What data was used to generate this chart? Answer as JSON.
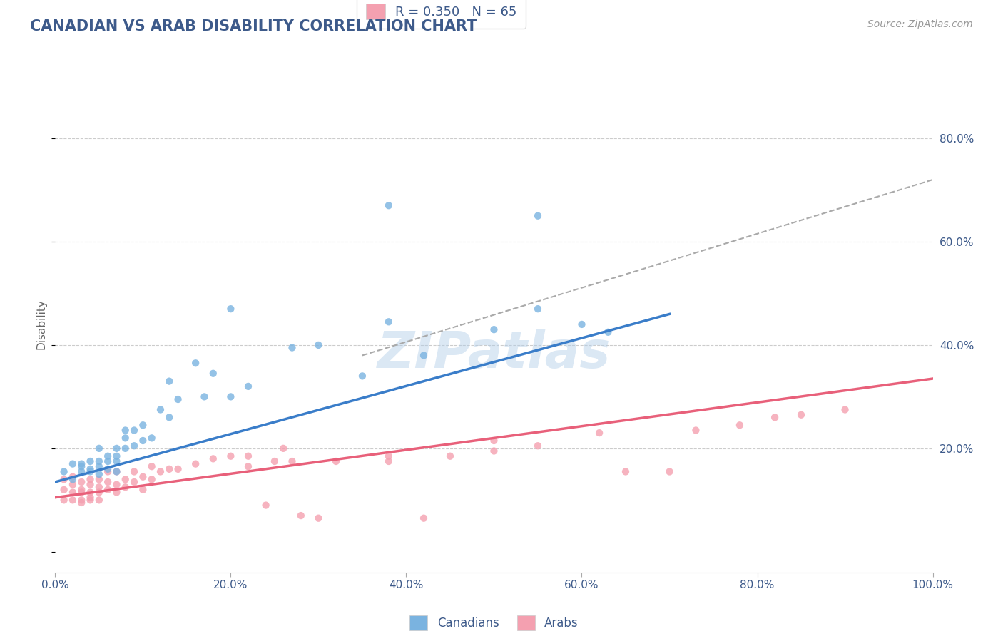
{
  "title": "CANADIAN VS ARAB DISABILITY CORRELATION CHART",
  "title_color": "#3d5a8a",
  "source_text": "Source: ZipAtlas.com",
  "ylabel": "Disability",
  "xlim": [
    0.0,
    1.0
  ],
  "ylim": [
    -0.04,
    0.92
  ],
  "x_ticks": [
    0.0,
    0.2,
    0.4,
    0.6,
    0.8,
    1.0
  ],
  "x_tick_labels": [
    "0.0%",
    "20.0%",
    "40.0%",
    "60.0%",
    "80.0%",
    "100.0%"
  ],
  "y_tick_vals": [
    0.2,
    0.4,
    0.6,
    0.8
  ],
  "y_tick_labels_right": [
    "20.0%",
    "40.0%",
    "60.0%",
    "80.0%"
  ],
  "canadian_color": "#7ab3e0",
  "arab_color": "#f4a0b0",
  "canadian_line_color": "#3a7dc9",
  "arab_line_color": "#e8607a",
  "dashed_line_color": "#aaaaaa",
  "legend_arab_label": "R = 0.350   N = 65",
  "legend_text_color": "#3d5a8a",
  "watermark": "ZIPatlas",
  "canadian_line": [
    0.0,
    0.135,
    0.7,
    0.46
  ],
  "arab_line": [
    0.0,
    0.105,
    1.0,
    0.335
  ],
  "dashed_line": [
    0.35,
    0.38,
    1.0,
    0.72
  ],
  "canadian_x": [
    0.01,
    0.02,
    0.02,
    0.03,
    0.03,
    0.03,
    0.04,
    0.04,
    0.04,
    0.05,
    0.05,
    0.05,
    0.05,
    0.06,
    0.06,
    0.06,
    0.07,
    0.07,
    0.07,
    0.07,
    0.08,
    0.08,
    0.08,
    0.09,
    0.09,
    0.1,
    0.1,
    0.11,
    0.12,
    0.13,
    0.13,
    0.14,
    0.16,
    0.17,
    0.18,
    0.2,
    0.22,
    0.27,
    0.3,
    0.35,
    0.38,
    0.42,
    0.5,
    0.55,
    0.6,
    0.63,
    0.38,
    0.55,
    0.2
  ],
  "canadian_y": [
    0.155,
    0.14,
    0.17,
    0.155,
    0.165,
    0.17,
    0.155,
    0.16,
    0.175,
    0.15,
    0.165,
    0.175,
    0.2,
    0.16,
    0.175,
    0.185,
    0.155,
    0.175,
    0.185,
    0.2,
    0.22,
    0.235,
    0.2,
    0.205,
    0.235,
    0.215,
    0.245,
    0.22,
    0.275,
    0.26,
    0.33,
    0.295,
    0.365,
    0.3,
    0.345,
    0.3,
    0.32,
    0.395,
    0.4,
    0.34,
    0.445,
    0.38,
    0.43,
    0.47,
    0.44,
    0.425,
    0.67,
    0.65,
    0.47
  ],
  "arab_x": [
    0.01,
    0.01,
    0.01,
    0.02,
    0.02,
    0.02,
    0.02,
    0.03,
    0.03,
    0.03,
    0.03,
    0.03,
    0.04,
    0.04,
    0.04,
    0.04,
    0.04,
    0.05,
    0.05,
    0.05,
    0.05,
    0.06,
    0.06,
    0.06,
    0.07,
    0.07,
    0.07,
    0.08,
    0.08,
    0.09,
    0.09,
    0.1,
    0.1,
    0.11,
    0.11,
    0.12,
    0.13,
    0.14,
    0.16,
    0.18,
    0.2,
    0.22,
    0.22,
    0.25,
    0.26,
    0.27,
    0.3,
    0.32,
    0.38,
    0.38,
    0.42,
    0.45,
    0.5,
    0.5,
    0.55,
    0.62,
    0.65,
    0.7,
    0.73,
    0.78,
    0.82,
    0.85,
    0.9,
    0.24,
    0.28
  ],
  "arab_y": [
    0.12,
    0.1,
    0.14,
    0.115,
    0.1,
    0.13,
    0.145,
    0.1,
    0.12,
    0.135,
    0.095,
    0.115,
    0.1,
    0.115,
    0.13,
    0.105,
    0.14,
    0.115,
    0.1,
    0.125,
    0.14,
    0.12,
    0.135,
    0.155,
    0.115,
    0.13,
    0.155,
    0.125,
    0.14,
    0.135,
    0.155,
    0.12,
    0.145,
    0.14,
    0.165,
    0.155,
    0.16,
    0.16,
    0.17,
    0.18,
    0.185,
    0.165,
    0.185,
    0.175,
    0.2,
    0.175,
    0.065,
    0.175,
    0.175,
    0.185,
    0.065,
    0.185,
    0.195,
    0.215,
    0.205,
    0.23,
    0.155,
    0.155,
    0.235,
    0.245,
    0.26,
    0.265,
    0.275,
    0.09,
    0.07
  ]
}
